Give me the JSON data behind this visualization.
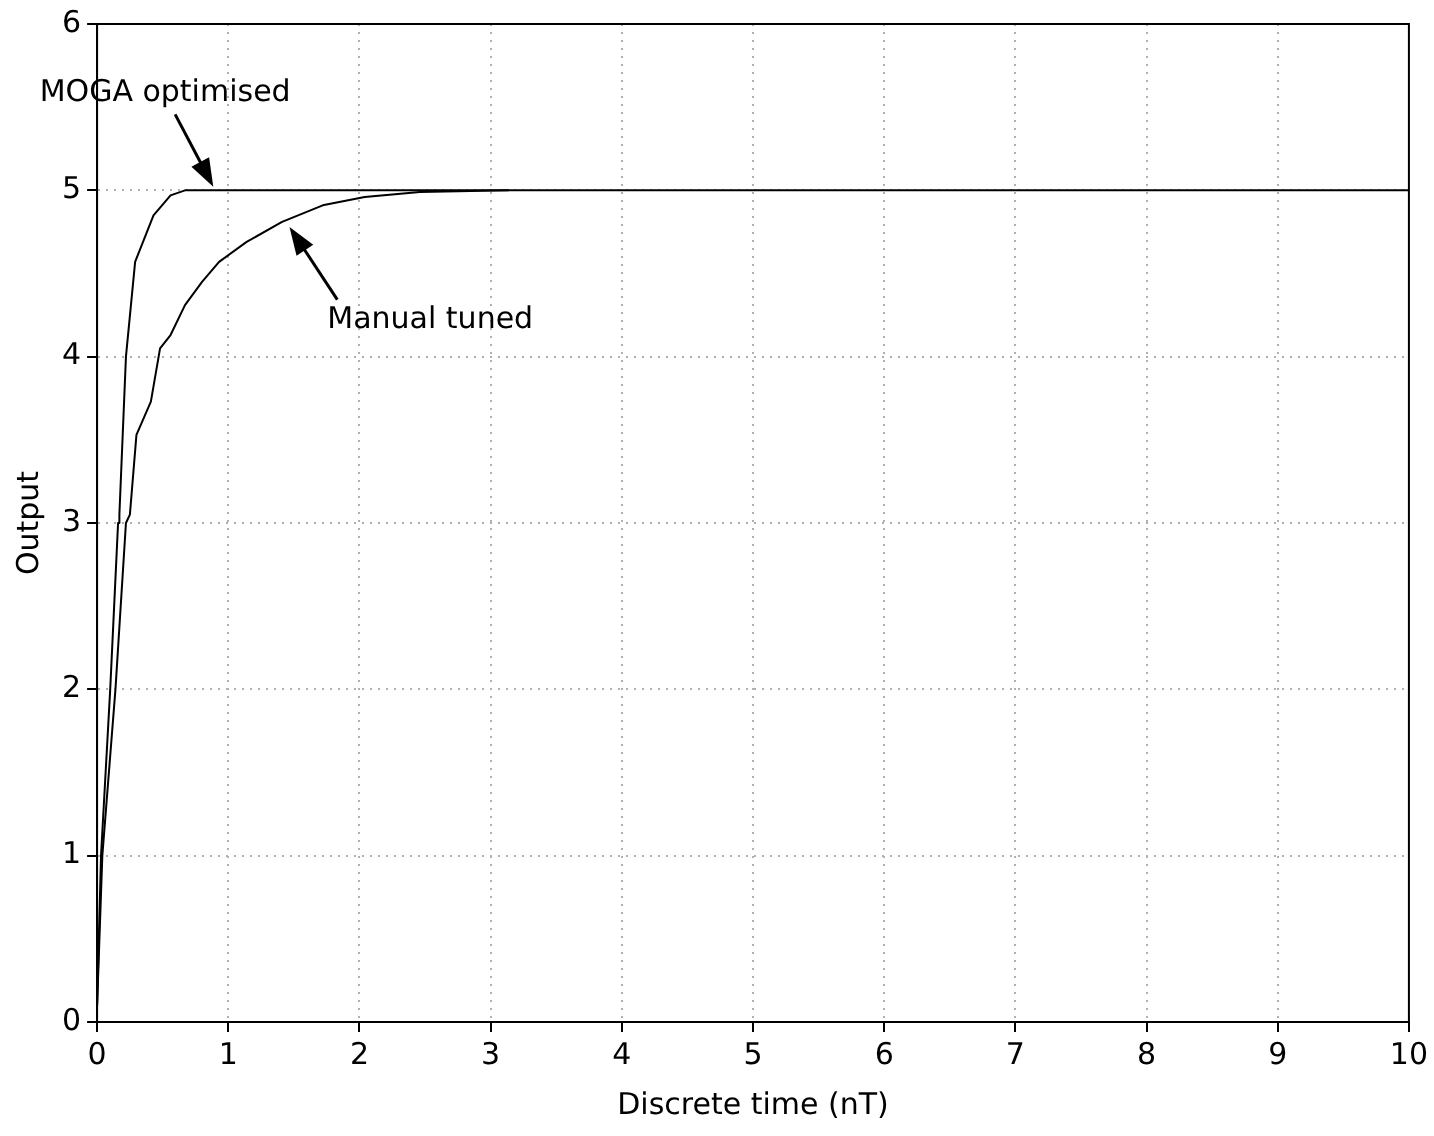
{
  "chart_data": {
    "type": "line",
    "xlabel": "Discrete time (nT)",
    "ylabel": "Output",
    "xlim": [
      0,
      10
    ],
    "xticks": [
      0,
      1,
      2,
      3,
      4,
      5,
      6,
      7,
      8,
      9,
      10
    ],
    "ylim": [
      0,
      6
    ],
    "yticks": [
      0,
      1,
      2,
      3,
      4,
      5,
      6
    ],
    "grid": true,
    "legend": false,
    "marker": "none",
    "line_style": "solid",
    "series": [
      {
        "color": "#000000",
        "x": [
          0,
          0.03,
          0.1,
          0.16,
          0.17,
          0.22,
          0.29,
          0.43,
          0.56,
          0.67,
          1,
          10
        ],
        "values": [
          0.1,
          1,
          2,
          3,
          3.05,
          4,
          4.57,
          4.85,
          4.97,
          5,
          5,
          5
        ]
      },
      {
        "color": "#000000",
        "x": [
          0,
          0.04,
          0.14,
          0.22,
          0.25,
          0.3,
          0.41,
          0.48,
          0.56,
          0.67,
          0.8,
          0.93,
          1.14,
          1.41,
          1.72,
          2.04,
          2.46,
          3.14
        ],
        "values": [
          0.1,
          1,
          2,
          3,
          3.05,
          3.53,
          3.73,
          4.05,
          4.13,
          4.31,
          4.45,
          4.57,
          4.69,
          4.81,
          4.91,
          4.96,
          4.99,
          5
        ]
      }
    ],
    "annotations": [
      {
        "text": "MOGA optimised",
        "x": 0.9,
        "y": 5
      },
      {
        "text": "Manual tuned",
        "x": 1.45,
        "y": 4.8
      }
    ]
  }
}
